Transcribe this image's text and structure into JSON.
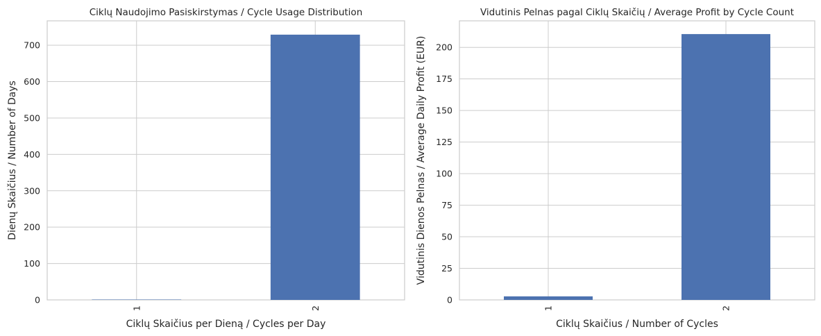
{
  "chart_data": [
    {
      "type": "bar",
      "title": "Ciklų Naudojimo Pasiskirstymas / Cycle Usage Distribution",
      "xlabel": "Ciklų Skaičius per Dieną / Cycles per Day",
      "ylabel": "Dienų Skaičius / Number of Days",
      "categories": [
        "1",
        "2"
      ],
      "values": [
        1,
        729
      ],
      "ylim": [
        0,
        767
      ],
      "yticks": [
        0,
        100,
        200,
        300,
        400,
        500,
        600,
        700
      ],
      "bar_color": "#4c72b0",
      "grid": true,
      "xtick_rotation": 90
    },
    {
      "type": "bar",
      "title": "Vidutinis Pelnas pagal Ciklų Skaičių / Average Profit by Cycle Count",
      "xlabel": "Ciklų Skaičius / Number of Cycles",
      "ylabel": "Vidutinis Dienos Pelnas / Average Daily Profit (EUR)",
      "categories": [
        "1",
        "2"
      ],
      "values": [
        2.8,
        210.5
      ],
      "ylim": [
        0,
        221
      ],
      "yticks": [
        0,
        25,
        50,
        75,
        100,
        125,
        150,
        175,
        200
      ],
      "bar_color": "#4c72b0",
      "grid": true,
      "xtick_rotation": 90
    }
  ]
}
